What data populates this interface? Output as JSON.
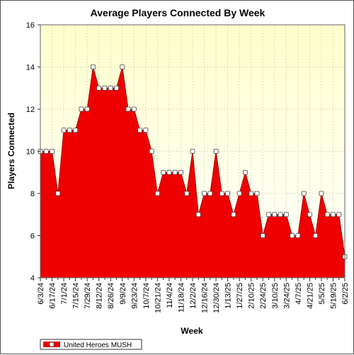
{
  "chart_data": {
    "type": "area",
    "title": "Average Players Connected By Week",
    "xlabel": "Week",
    "ylabel": "Players Connected",
    "ylim": [
      4,
      16
    ],
    "yticks": [
      4,
      6,
      8,
      10,
      12,
      14,
      16
    ],
    "x_tick_labels": [
      "6/3/24",
      "6/17/24",
      "7/1/24",
      "7/15/24",
      "7/29/24",
      "8/12/24",
      "8/26/24",
      "9/9/24",
      "9/23/24",
      "10/7/24",
      "10/21/24",
      "11/4/24",
      "11/18/24",
      "12/2/24",
      "12/16/24",
      "12/30/24",
      "1/13/25",
      "1/27/25",
      "2/10/25",
      "2/24/25",
      "3/10/25",
      "3/24/25",
      "4/7/25",
      "4/21/25",
      "5/5/25",
      "5/19/25",
      "6/2/25"
    ],
    "grid": true,
    "legend_position": "bottom-left",
    "colors": {
      "fill": "#ee0000",
      "line": "#aa0000",
      "plot_bg_top": "#ffffcc",
      "plot_bg_bottom": "#ffffff",
      "grid": "#c8c8a0"
    },
    "series": [
      {
        "name": "United Heroes MUSH",
        "values": [
          10,
          10,
          10,
          8,
          11,
          11,
          11,
          12,
          12,
          14,
          13,
          13,
          13,
          13,
          14,
          12,
          12,
          11,
          11,
          10,
          8,
          9,
          9,
          9,
          9,
          8,
          10,
          7,
          8,
          8,
          10,
          8,
          8,
          7,
          8,
          9,
          8,
          8,
          6,
          7,
          7,
          7,
          7,
          6,
          6,
          8,
          7,
          6,
          8,
          7,
          7,
          7,
          5
        ]
      }
    ]
  }
}
